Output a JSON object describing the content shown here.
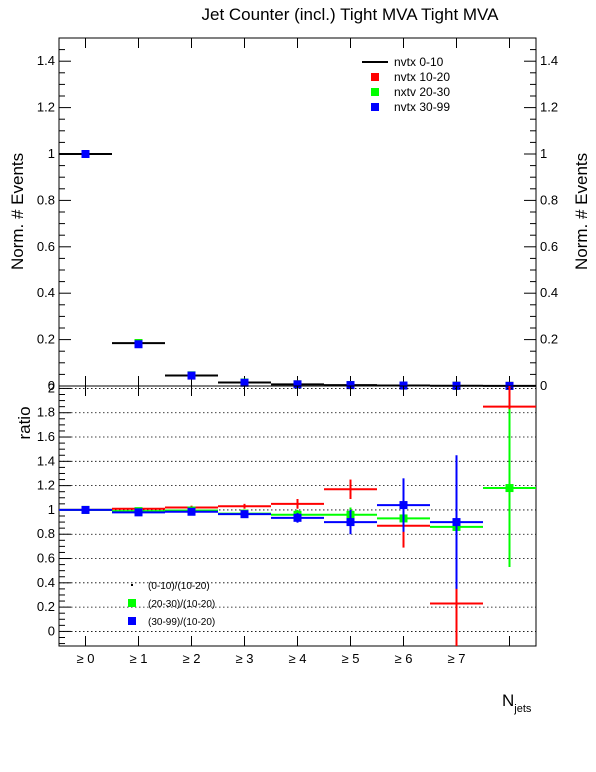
{
  "chart_data": [
    {
      "type": "scatter",
      "title": "Jet Counter (incl.) Tight MVA Tight MVA",
      "ylabel": "Norm. # Events",
      "ylim": [
        0,
        1.5
      ],
      "yticks": [
        "0",
        "0.2",
        "0.4",
        "0.6",
        "0.8",
        "1",
        "1.2",
        "1.4"
      ],
      "grid": false,
      "legend_position": "top-right",
      "series": [
        {
          "name": "nvtx 0-10",
          "color": "#000000",
          "marker": "line",
          "x": [
            0,
            1,
            2,
            3,
            4,
            5,
            6,
            7,
            8
          ],
          "y": [
            1.0,
            0.185,
            0.045,
            0.015,
            0.007,
            0.004,
            0.002,
            0.001,
            0.0005
          ]
        },
        {
          "name": "nvtx 10-20",
          "color": "#ff0000",
          "marker": "square",
          "x": [
            0,
            1,
            2,
            3,
            4,
            5,
            6,
            7,
            8
          ],
          "y": [
            1.0,
            0.185,
            0.045,
            0.015,
            0.007,
            0.004,
            0.002,
            0.001,
            0.0005
          ]
        },
        {
          "name": "nxtv 20-30",
          "color": "#00ff00",
          "marker": "square",
          "x": [
            0,
            1,
            2,
            3,
            4,
            5,
            6,
            7,
            8
          ],
          "y": [
            1.0,
            0.185,
            0.046,
            0.015,
            0.007,
            0.004,
            0.002,
            0.001,
            0.0005
          ]
        },
        {
          "name": "nvtx 30-99",
          "color": "#0000ff",
          "marker": "square",
          "x": [
            0,
            1,
            2,
            3,
            4,
            5,
            6,
            7,
            8
          ],
          "y": [
            1.0,
            0.18,
            0.045,
            0.014,
            0.007,
            0.004,
            0.002,
            0.001,
            0.0005
          ]
        }
      ]
    },
    {
      "type": "scatter",
      "ylabel": "ratio",
      "xlabel_main": "N",
      "xlabel_sub": "jets",
      "ylim": [
        -0.12,
        2.02
      ],
      "yticks": [
        "0",
        "0.2",
        "0.4",
        "0.6",
        "0.8",
        "1",
        "1.2",
        "1.4",
        "1.6",
        "1.8",
        "2"
      ],
      "categories": [
        "≥ 0",
        "≥ 1",
        "≥ 2",
        "≥ 3",
        "≥ 4",
        "≥ 5",
        "≥ 6",
        "≥ 7"
      ],
      "grid": true,
      "legend_position": "bottom-left",
      "series": [
        {
          "name": "(0-10)/(10-20)",
          "color": "#ff0000",
          "marker": "cross",
          "x": [
            0,
            1,
            2,
            3,
            4,
            5,
            6,
            7,
            8
          ],
          "y": [
            1.0,
            1.01,
            1.02,
            1.03,
            1.05,
            1.17,
            0.87,
            0.23,
            1.85
          ],
          "yerr": [
            0.005,
            0.01,
            0.015,
            0.02,
            0.04,
            0.08,
            0.18,
            0.5,
            0.4
          ]
        },
        {
          "name": "(20-30)/(10-20)",
          "color": "#00ff00",
          "marker": "square",
          "x": [
            0,
            1,
            2,
            3,
            4,
            5,
            6,
            7,
            8
          ],
          "y": [
            1.0,
            0.99,
            0.995,
            0.97,
            0.96,
            0.96,
            0.93,
            0.86,
            1.18
          ],
          "yerr": [
            0.005,
            0.01,
            0.015,
            0.02,
            0.04,
            0.06,
            0.1,
            0.15,
            0.65
          ]
        },
        {
          "name": "(30-99)/(10-20)",
          "color": "#0000ff",
          "marker": "square",
          "x": [
            0,
            1,
            2,
            3,
            4,
            5,
            6,
            7
          ],
          "y": [
            1.0,
            0.98,
            0.985,
            0.965,
            0.935,
            0.9,
            1.04,
            0.9
          ],
          "yerr": [
            0.005,
            0.01,
            0.015,
            0.02,
            0.04,
            0.1,
            0.22,
            0.55
          ]
        }
      ]
    }
  ]
}
